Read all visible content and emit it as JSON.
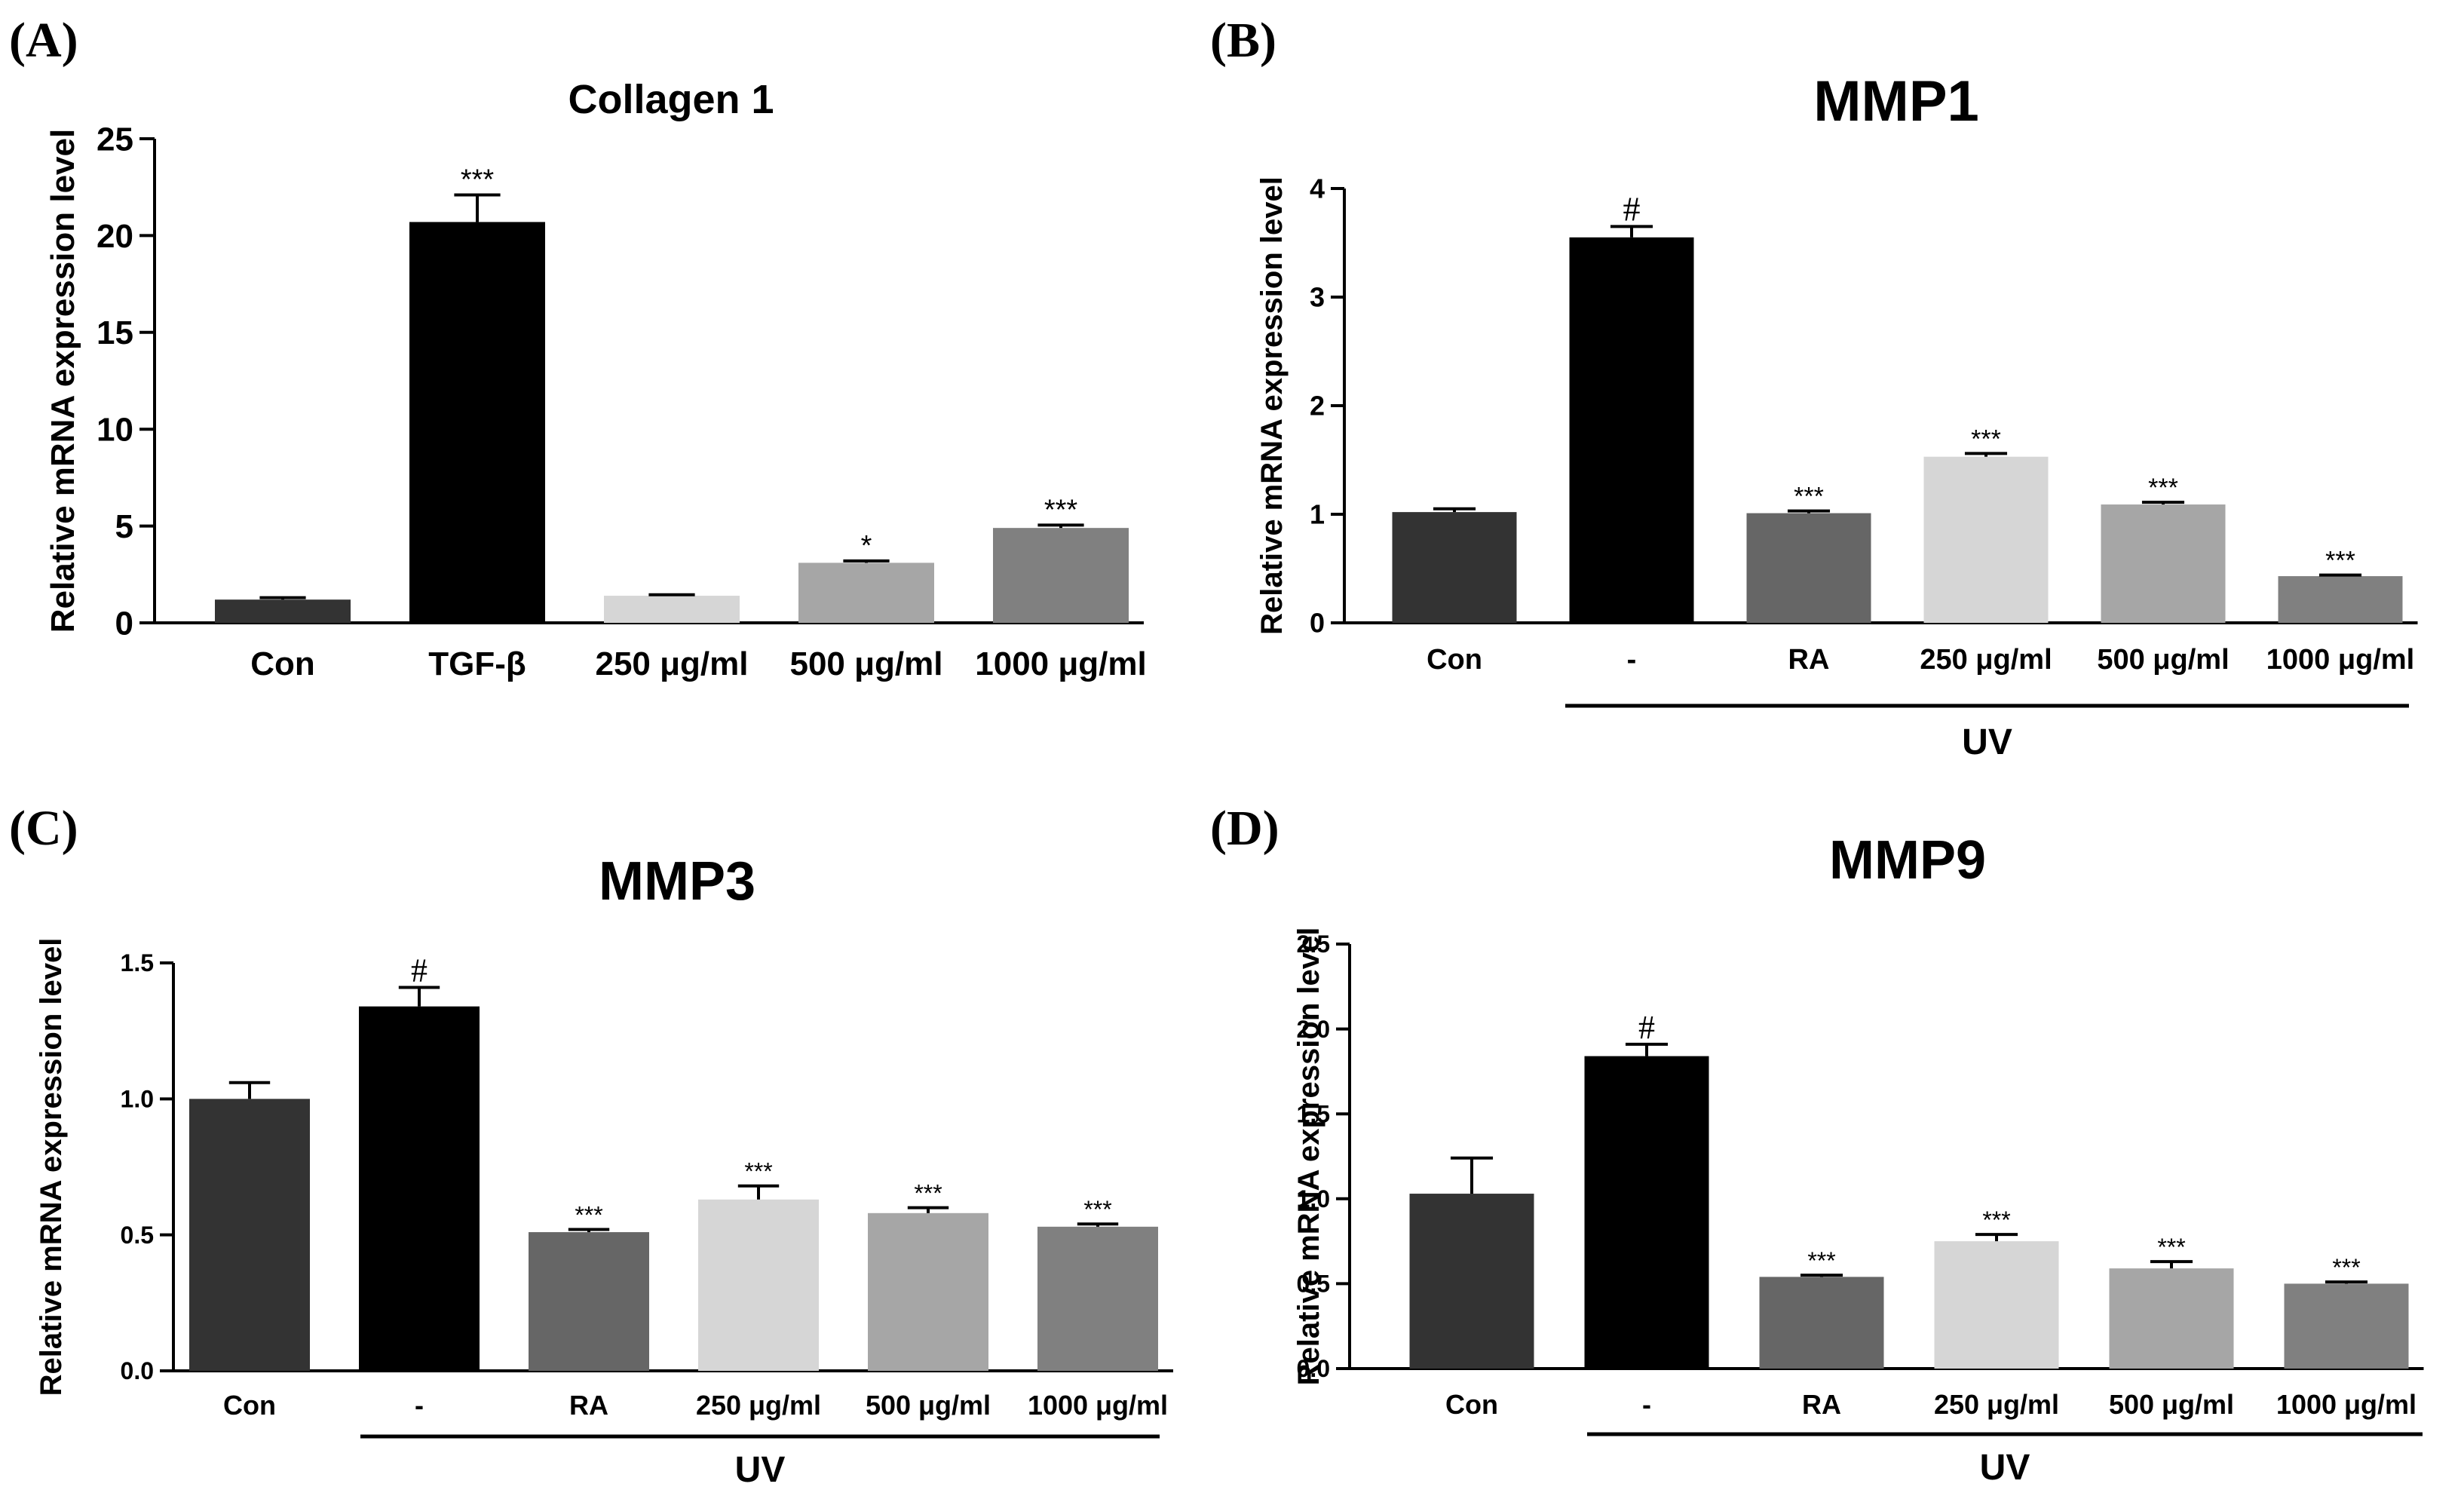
{
  "chart_data": [
    {
      "type": "bar",
      "panel": "(A)",
      "title": "Collagen 1",
      "ylabel": "Relative mRNA expression level",
      "xlabel": "",
      "ylim": [
        0,
        25
      ],
      "yticks": [
        "0",
        "5",
        "10",
        "15",
        "20",
        "25"
      ],
      "categories": [
        "Con",
        "TGF-β",
        "250 μg/ml",
        "500 μg/ml",
        "1000 μg/ml"
      ],
      "values": [
        1.2,
        20.7,
        1.4,
        3.1,
        4.9
      ],
      "errors": [
        0.1,
        1.4,
        0.05,
        0.1,
        0.15
      ],
      "significance": [
        "",
        "***",
        "",
        "*",
        "***"
      ],
      "colors": [
        "#333333",
        "#000000",
        "#d6d6d6",
        "#a6a6a6",
        "#808080"
      ],
      "group_label": ""
    },
    {
      "type": "bar",
      "panel": "(B)",
      "title": "MMP1",
      "ylabel": "Relative mRNA expression level",
      "xlabel": "",
      "ylim": [
        0,
        4
      ],
      "yticks": [
        "0",
        "1",
        "2",
        "3",
        "4"
      ],
      "categories": [
        "Con",
        "-",
        "RA",
        "250 μg/ml",
        "500 μg/ml",
        "1000 μg/ml"
      ],
      "values": [
        1.02,
        3.55,
        1.01,
        1.53,
        1.09,
        0.43
      ],
      "errors": [
        0.03,
        0.1,
        0.02,
        0.03,
        0.02,
        0.01
      ],
      "significance": [
        "",
        "#",
        "***",
        "***",
        "***",
        "***"
      ],
      "colors": [
        "#333333",
        "#000000",
        "#666666",
        "#d6d6d6",
        "#a6a6a6",
        "#808080"
      ],
      "group_label": "UV"
    },
    {
      "type": "bar",
      "panel": "(C)",
      "title": "MMP3",
      "ylabel": "Relative mRNA expression level",
      "xlabel": "",
      "ylim": [
        0,
        1.5
      ],
      "yticks": [
        "0.0",
        "0.5",
        "1.0",
        "1.5"
      ],
      "categories": [
        "Con",
        "-",
        "RA",
        "250 μg/ml",
        "500 μg/ml",
        "1000 μg/ml"
      ],
      "values": [
        1.0,
        1.34,
        0.51,
        0.63,
        0.58,
        0.53
      ],
      "errors": [
        0.06,
        0.07,
        0.01,
        0.05,
        0.02,
        0.01
      ],
      "significance": [
        "",
        "#",
        "***",
        "***",
        "***",
        "***"
      ],
      "colors": [
        "#333333",
        "#000000",
        "#666666",
        "#d6d6d6",
        "#a6a6a6",
        "#808080"
      ],
      "group_label": "UV"
    },
    {
      "type": "bar",
      "panel": "(D)",
      "title": "MMP9",
      "ylabel": "Relative mRNA expression level",
      "xlabel": "",
      "ylim": [
        0,
        2.5
      ],
      "yticks": [
        "0.0",
        "0.5",
        "1.0",
        "1.5",
        "2.0",
        "2.5"
      ],
      "categories": [
        "Con",
        "-",
        "RA",
        "250 μg/ml",
        "500 μg/ml",
        "1000 μg/ml"
      ],
      "values": [
        1.03,
        1.84,
        0.54,
        0.75,
        0.59,
        0.5
      ],
      "errors": [
        0.21,
        0.07,
        0.01,
        0.04,
        0.04,
        0.01
      ],
      "significance": [
        "",
        "#",
        "***",
        "***",
        "***",
        "***"
      ],
      "colors": [
        "#333333",
        "#000000",
        "#666666",
        "#d6d6d6",
        "#a6a6a6",
        "#808080"
      ],
      "group_label": "UV"
    }
  ]
}
